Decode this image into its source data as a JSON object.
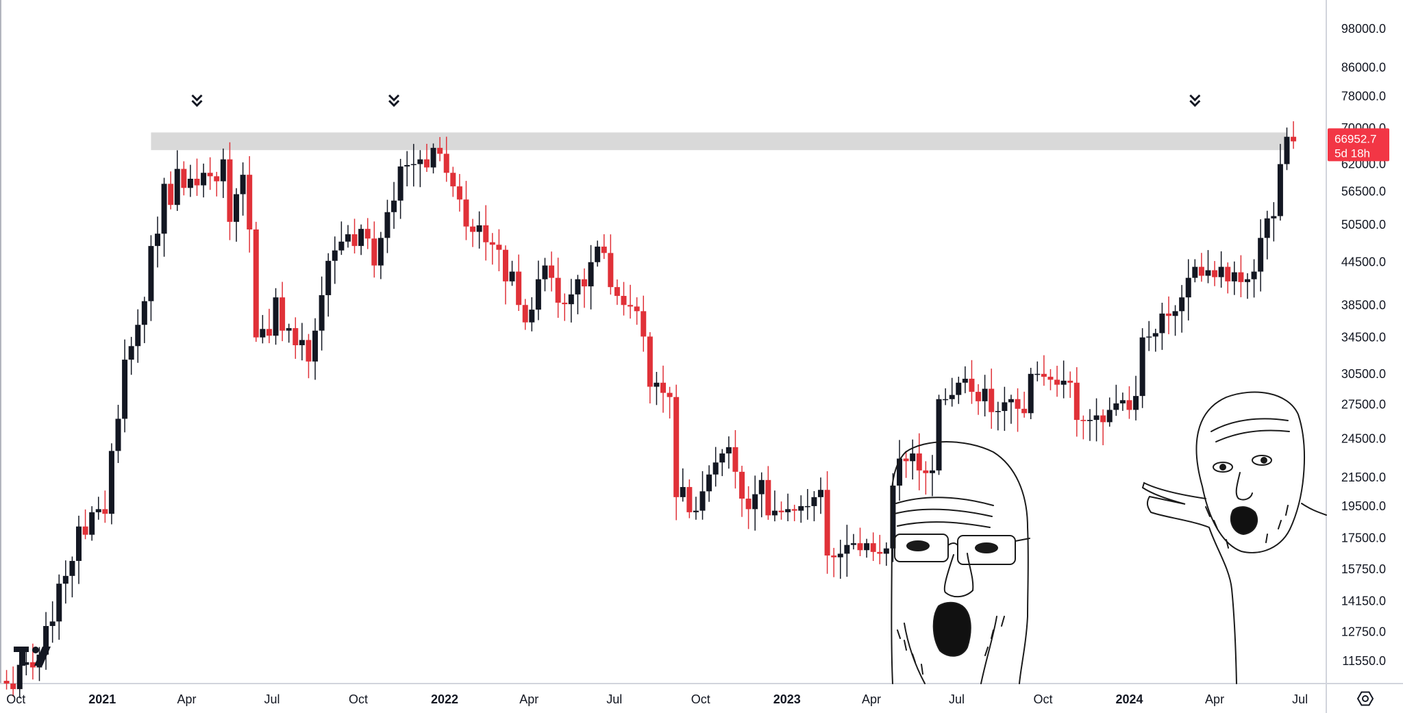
{
  "chart_data": {
    "type": "candlestick",
    "title": "",
    "xlabel": "",
    "ylabel": "",
    "y_scale": "log",
    "ylim": [
      10800,
      107000
    ],
    "x_range": [
      "2020-09-14",
      "2024-07-29"
    ],
    "colors": {
      "up": "#131722",
      "down": "#e03138",
      "zone": "#d9d9d9",
      "badge": "#f23645"
    },
    "x_tick_labels": [
      {
        "date": "2020-10-01",
        "label": "Oct",
        "year": false
      },
      {
        "date": "2021-01-01",
        "label": "2021",
        "year": true
      },
      {
        "date": "2021-04-01",
        "label": "Apr",
        "year": false
      },
      {
        "date": "2021-07-01",
        "label": "Jul",
        "year": false
      },
      {
        "date": "2021-10-01",
        "label": "Oct",
        "year": false
      },
      {
        "date": "2022-01-01",
        "label": "2022",
        "year": true
      },
      {
        "date": "2022-04-01",
        "label": "Apr",
        "year": false
      },
      {
        "date": "2022-07-01",
        "label": "Jul",
        "year": false
      },
      {
        "date": "2022-10-01",
        "label": "Oct",
        "year": false
      },
      {
        "date": "2023-01-01",
        "label": "2023",
        "year": true
      },
      {
        "date": "2023-04-01",
        "label": "Apr",
        "year": false
      },
      {
        "date": "2023-07-01",
        "label": "Jul",
        "year": false
      },
      {
        "date": "2023-10-01",
        "label": "Oct",
        "year": false
      },
      {
        "date": "2024-01-01",
        "label": "2024",
        "year": true
      },
      {
        "date": "2024-04-01",
        "label": "Apr",
        "year": false
      },
      {
        "date": "2024-07-01",
        "label": "Jul",
        "year": false
      }
    ],
    "y_tick_labels": [
      {
        "value": 98000,
        "label": "98000.0"
      },
      {
        "value": 86000,
        "label": "86000.0"
      },
      {
        "value": 78000,
        "label": "78000.0"
      },
      {
        "value": 70000,
        "label": "70000.0"
      },
      {
        "value": 62000,
        "label": "62000.0"
      },
      {
        "value": 56500,
        "label": "56500.0"
      },
      {
        "value": 50500,
        "label": "50500.0"
      },
      {
        "value": 44500,
        "label": "44500.0"
      },
      {
        "value": 38500,
        "label": "38500.0"
      },
      {
        "value": 34500,
        "label": "34500.0"
      },
      {
        "value": 30500,
        "label": "30500.0"
      },
      {
        "value": 27500,
        "label": "27500.0"
      },
      {
        "value": 24500,
        "label": "24500.0"
      },
      {
        "value": 21500,
        "label": "21500.0"
      },
      {
        "value": 19500,
        "label": "19500.0"
      },
      {
        "value": 17500,
        "label": "17500.0"
      },
      {
        "value": 15750,
        "label": "15750.0"
      },
      {
        "value": 14150,
        "label": "14150.0"
      },
      {
        "value": 12750,
        "label": "12750.0"
      },
      {
        "value": 11550,
        "label": "11550.0"
      }
    ],
    "resistance_zone": {
      "from": 65000,
      "to": 69000,
      "start": "2021-02-22",
      "end": "2024-06-17"
    },
    "peak_markers": [
      {
        "date": "2021-04-12",
        "value": 64800
      },
      {
        "date": "2021-11-08",
        "value": 69000
      },
      {
        "date": "2024-03-11",
        "value": 69000
      }
    ],
    "last_price": {
      "value": 66952.7,
      "label": "66952.7",
      "countdown": "5d 18h"
    },
    "weekly_closes": [
      10800,
      10700,
      10500,
      11400,
      11500,
      11300,
      11800,
      13000,
      13200,
      15000,
      15400,
      16200,
      18200,
      17700,
      19100,
      19300,
      19000,
      23500,
      26200,
      32000,
      33500,
      36000,
      39000,
      47000,
      49000,
      58000,
      54000,
      61000,
      57200,
      59000,
      57700,
      60200,
      59500,
      58500,
      63000,
      51000,
      56000,
      59800,
      49700,
      34500,
      35500,
      34700,
      39500,
      35300,
      35600,
      33600,
      34200,
      31800,
      35300,
      39800,
      44700,
      46300,
      47700,
      48900,
      47000,
      49800,
      48200,
      44000,
      48300,
      52700,
      54800,
      61500,
      61800,
      62000,
      63000,
      61300,
      65500,
      64200,
      60200,
      57500,
      55000,
      50200,
      49300,
      50400,
      47600,
      47200,
      46400,
      41700,
      43100,
      38500,
      36300,
      37900,
      42000,
      44000,
      42200,
      38800,
      38600,
      39900,
      42000,
      41000,
      44500,
      46900,
      45900,
      40900,
      39700,
      38500,
      38300,
      37700,
      34600,
      29200,
      29600,
      28600,
      28200,
      20100,
      20800,
      19100,
      19200,
      20500,
      21700,
      22600,
      23300,
      23800,
      21900,
      20000,
      19300,
      20300,
      21300,
      18900,
      19200,
      19100,
      19300,
      19200,
      19500,
      19500,
      20100,
      20600,
      16500,
      16400,
      16600,
      17100,
      17200,
      16800,
      17200,
      16700,
      16600,
      16900,
      20900,
      22900,
      22700,
      23300,
      22000,
      21800,
      22000,
      28000,
      28000,
      28400,
      29600,
      30000,
      28700,
      27800,
      29000,
      26800,
      26900,
      27700,
      28000,
      27100,
      26700,
      30500,
      30500,
      30200,
      29900,
      29400,
      29800,
      29600,
      26100,
      26000,
      26100,
      26500,
      25900,
      27000,
      27600,
      27900,
      27000,
      28300,
      34500,
      34600,
      35000,
      37400,
      37100,
      37700,
      39500,
      42200,
      43800,
      42500,
      43300,
      42300,
      43800,
      41700,
      43000,
      41600,
      42000,
      43100,
      48300,
      51600,
      52000,
      62000,
      68000,
      66952.7
    ]
  }
}
